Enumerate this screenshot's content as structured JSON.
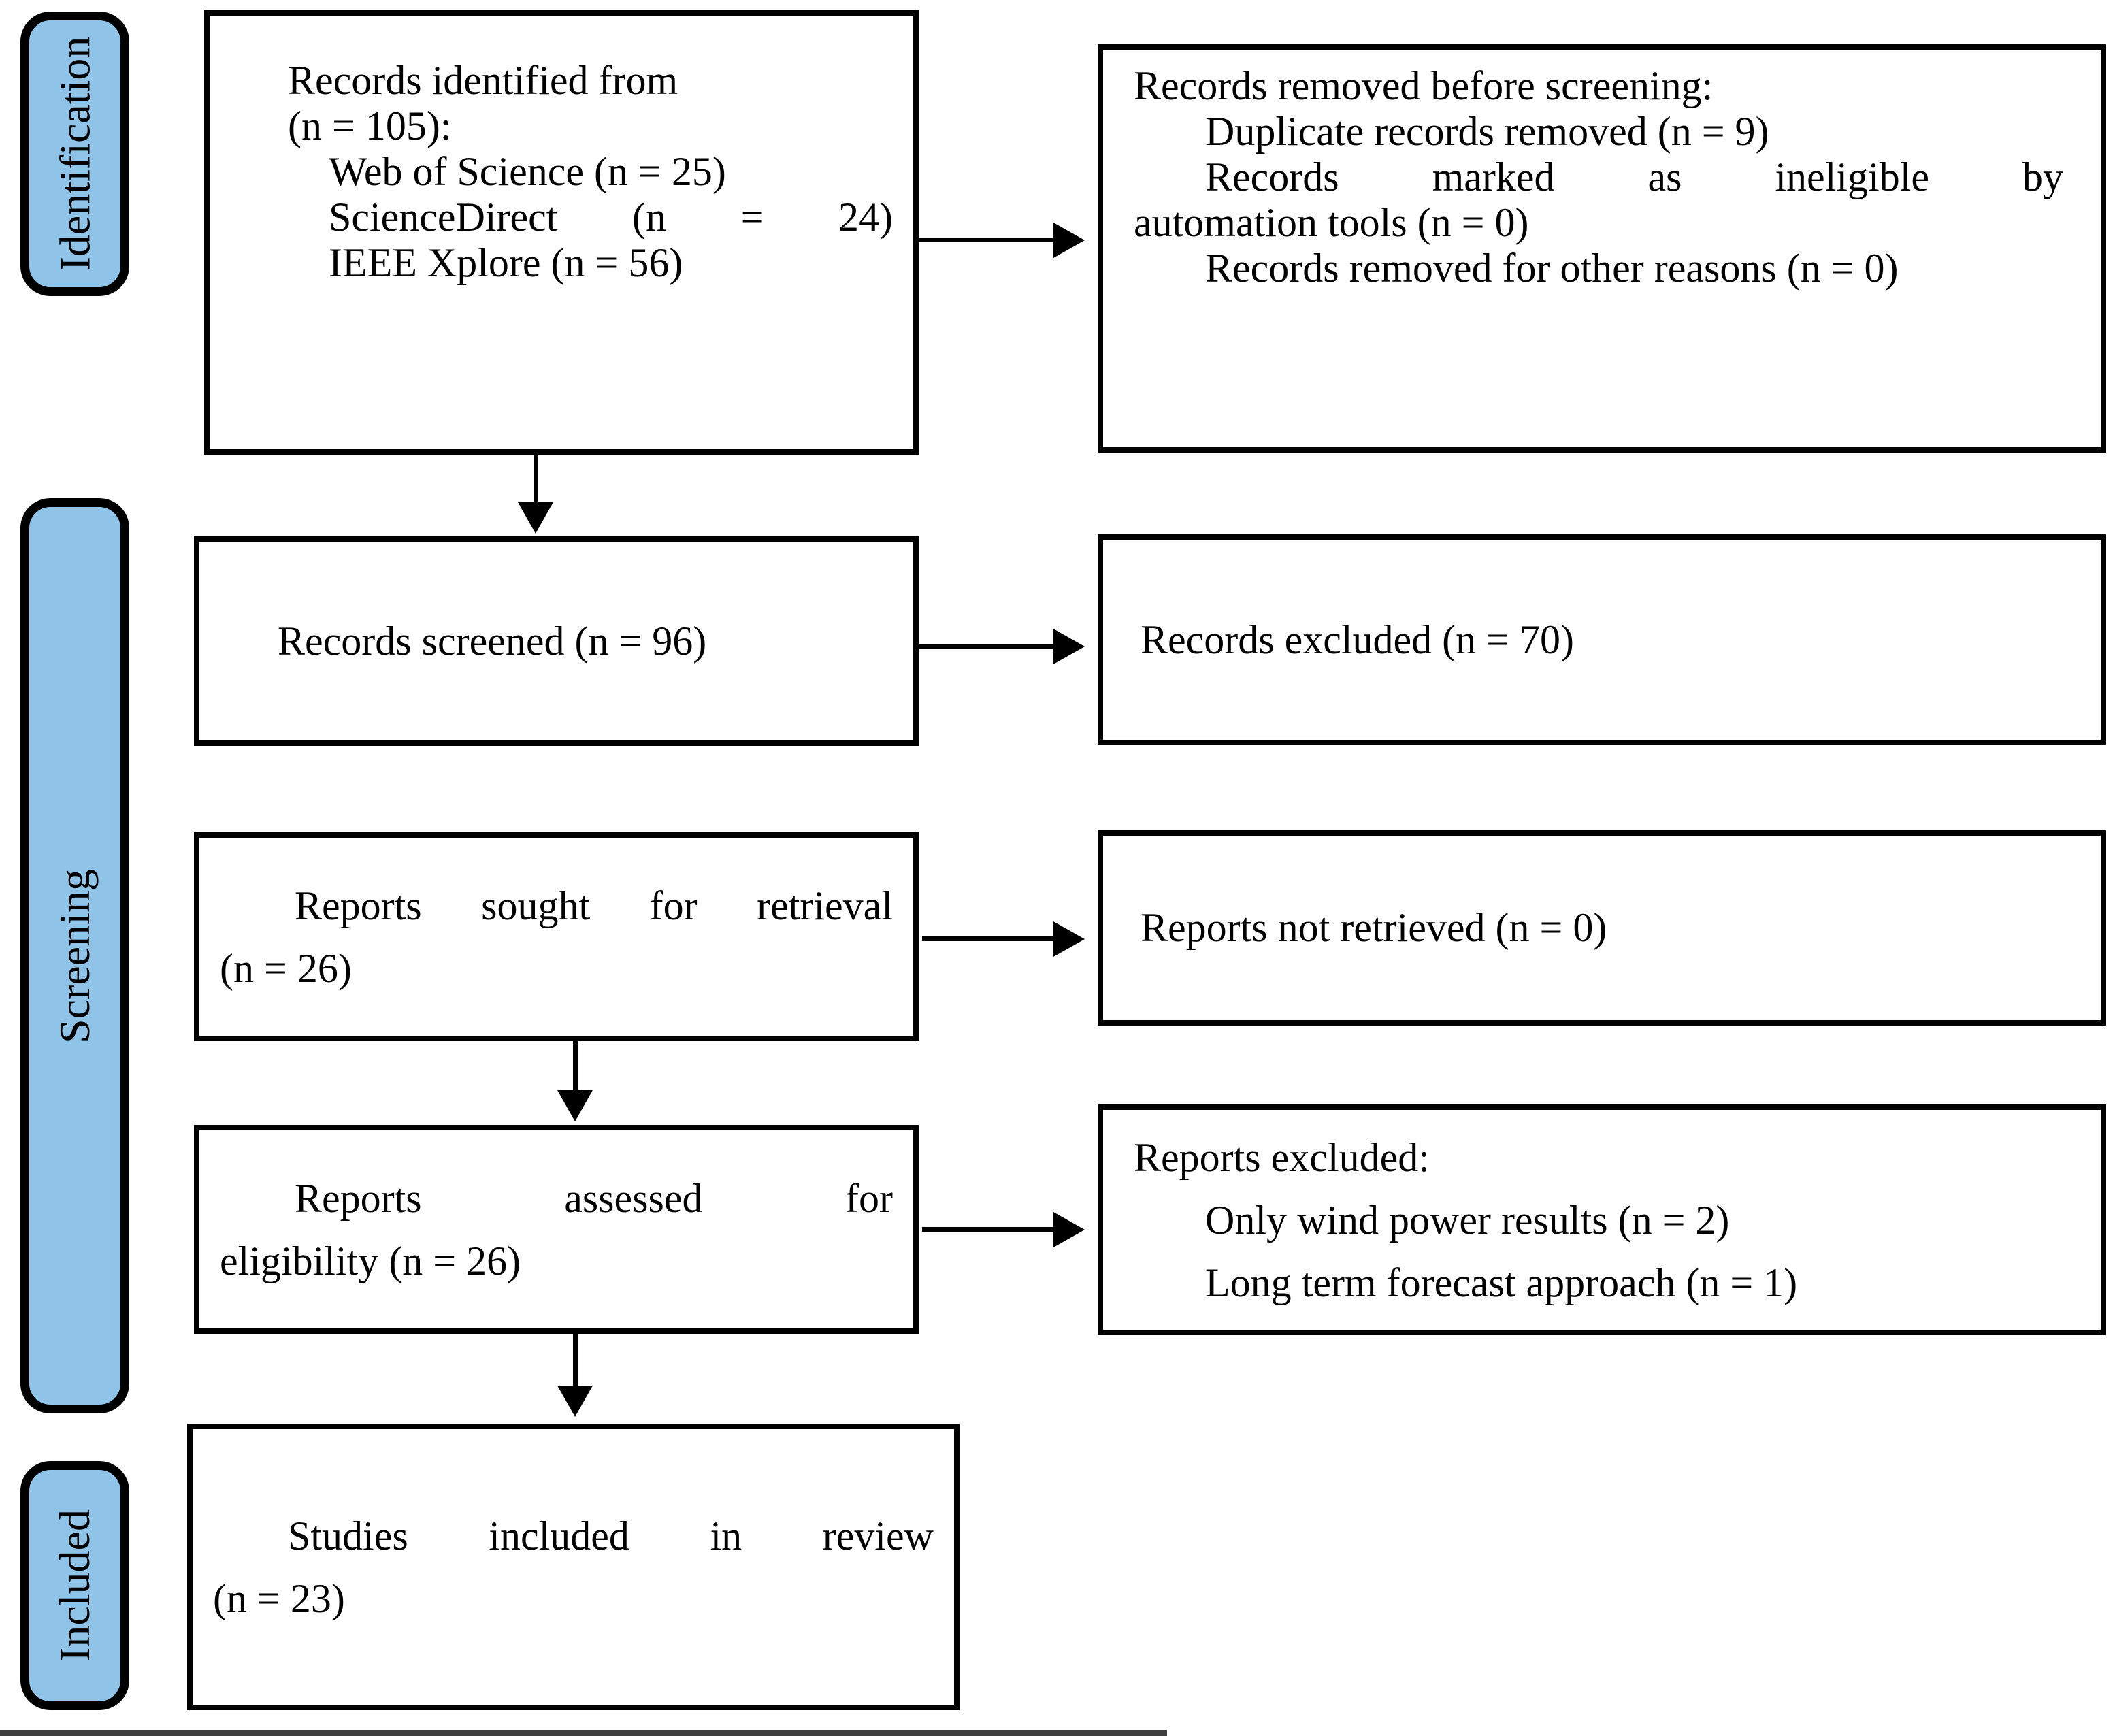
{
  "palette": {
    "stage_fill": "#8FC3E7",
    "stroke": "#000000",
    "background": "#FFFFFF"
  },
  "sidebar": {
    "identification": "Identification",
    "screening": "Screening",
    "included": "Included"
  },
  "boxes": {
    "identified": {
      "lines": [
        "Records identified from",
        "(n = 105):",
        "Web of Science (n = 25)",
        "ScienceDirect (n = 24)",
        "IEEE Xplore (n = 56)"
      ]
    },
    "removed_before_screening": {
      "lines": [
        "Records removed before screening:",
        "Duplicate records removed (n = 9)",
        "Records marked as ineligible by",
        "automation tools (n = 0)",
        "Records removed for other reasons (n = 0)"
      ]
    },
    "screened": {
      "lines": [
        "Records screened (n = 96)"
      ]
    },
    "records_excluded": {
      "lines": [
        "Records excluded (n = 70)"
      ]
    },
    "sought": {
      "lines": [
        "Reports sought for retrieval",
        "(n = 26)"
      ]
    },
    "not_retrieved": {
      "lines": [
        "Reports not retrieved (n = 0)"
      ]
    },
    "assessed": {
      "lines": [
        "Reports assessed for",
        "eligibility (n = 26)"
      ]
    },
    "reports_excluded": {
      "lines": [
        "Reports excluded:",
        "Only wind power results (n = 2)",
        "Long term forecast approach (n = 1)"
      ]
    },
    "included_in_review": {
      "lines": [
        "Studies included in review",
        "(n = 23)"
      ]
    }
  }
}
